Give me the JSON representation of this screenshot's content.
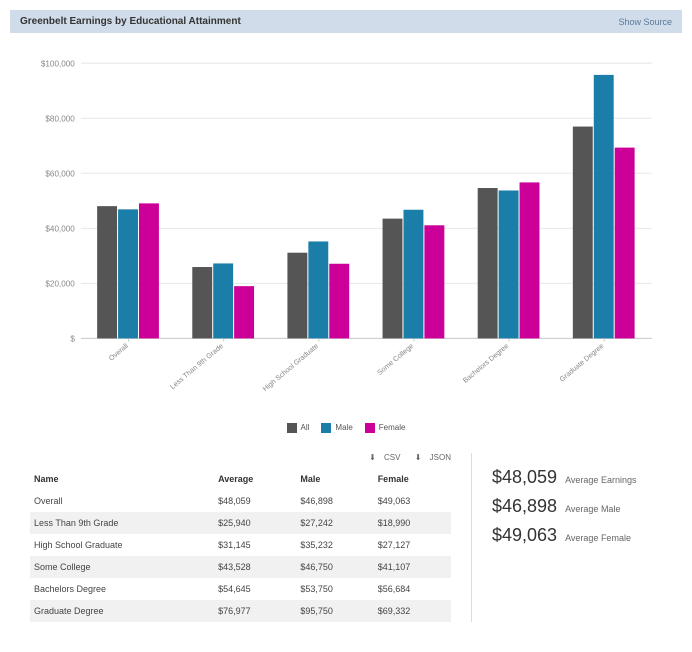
{
  "header": {
    "title": "Greenbelt Earnings by Educational Attainment",
    "show_source": "Show Source"
  },
  "chart": {
    "type": "grouped-bar",
    "ylim": [
      0,
      100000
    ],
    "ytick_step": 20000,
    "ytick_labels": [
      "$",
      "$20,000",
      "$40,000",
      "$60,000",
      "$80,000",
      "$100,000"
    ],
    "categories": [
      "Overall",
      "Less Than 9th Grade",
      "High School Graduate",
      "Some College",
      "Bachelors Degree",
      "Graduate Degree"
    ],
    "series": [
      {
        "name": "All",
        "color": "#555555",
        "values": [
          48059,
          25940,
          31145,
          43528,
          54645,
          76977
        ]
      },
      {
        "name": "Male",
        "color": "#1a7ea8",
        "values": [
          46898,
          27242,
          35232,
          46750,
          53750,
          95750
        ]
      },
      {
        "name": "Female",
        "color": "#cc0099",
        "values": [
          49063,
          18990,
          27127,
          41107,
          56684,
          69332
        ]
      }
    ],
    "grid_color": "#e8e8e8",
    "axis_color": "#cccccc",
    "bar_width": 0.22,
    "background": "#ffffff",
    "label_fontsize": 8
  },
  "legend": {
    "items": [
      "All",
      "Male",
      "Female"
    ]
  },
  "table": {
    "export_csv": "CSV",
    "export_json": "JSON",
    "download_glyph": "⬇",
    "columns": [
      "Name",
      "Average",
      "Male",
      "Female"
    ],
    "rows": [
      [
        "Overall",
        "$48,059",
        "$46,898",
        "$49,063"
      ],
      [
        "Less Than 9th Grade",
        "$25,940",
        "$27,242",
        "$18,990"
      ],
      [
        "High School Graduate",
        "$31,145",
        "$35,232",
        "$27,127"
      ],
      [
        "Some College",
        "$43,528",
        "$46,750",
        "$41,107"
      ],
      [
        "Bachelors Degree",
        "$54,645",
        "$53,750",
        "$56,684"
      ],
      [
        "Graduate Degree",
        "$76,977",
        "$95,750",
        "$69,332"
      ]
    ]
  },
  "stats": [
    {
      "value": "$48,059",
      "label": "Average Earnings"
    },
    {
      "value": "$46,898",
      "label": "Average Male"
    },
    {
      "value": "$49,063",
      "label": "Average Female"
    }
  ]
}
